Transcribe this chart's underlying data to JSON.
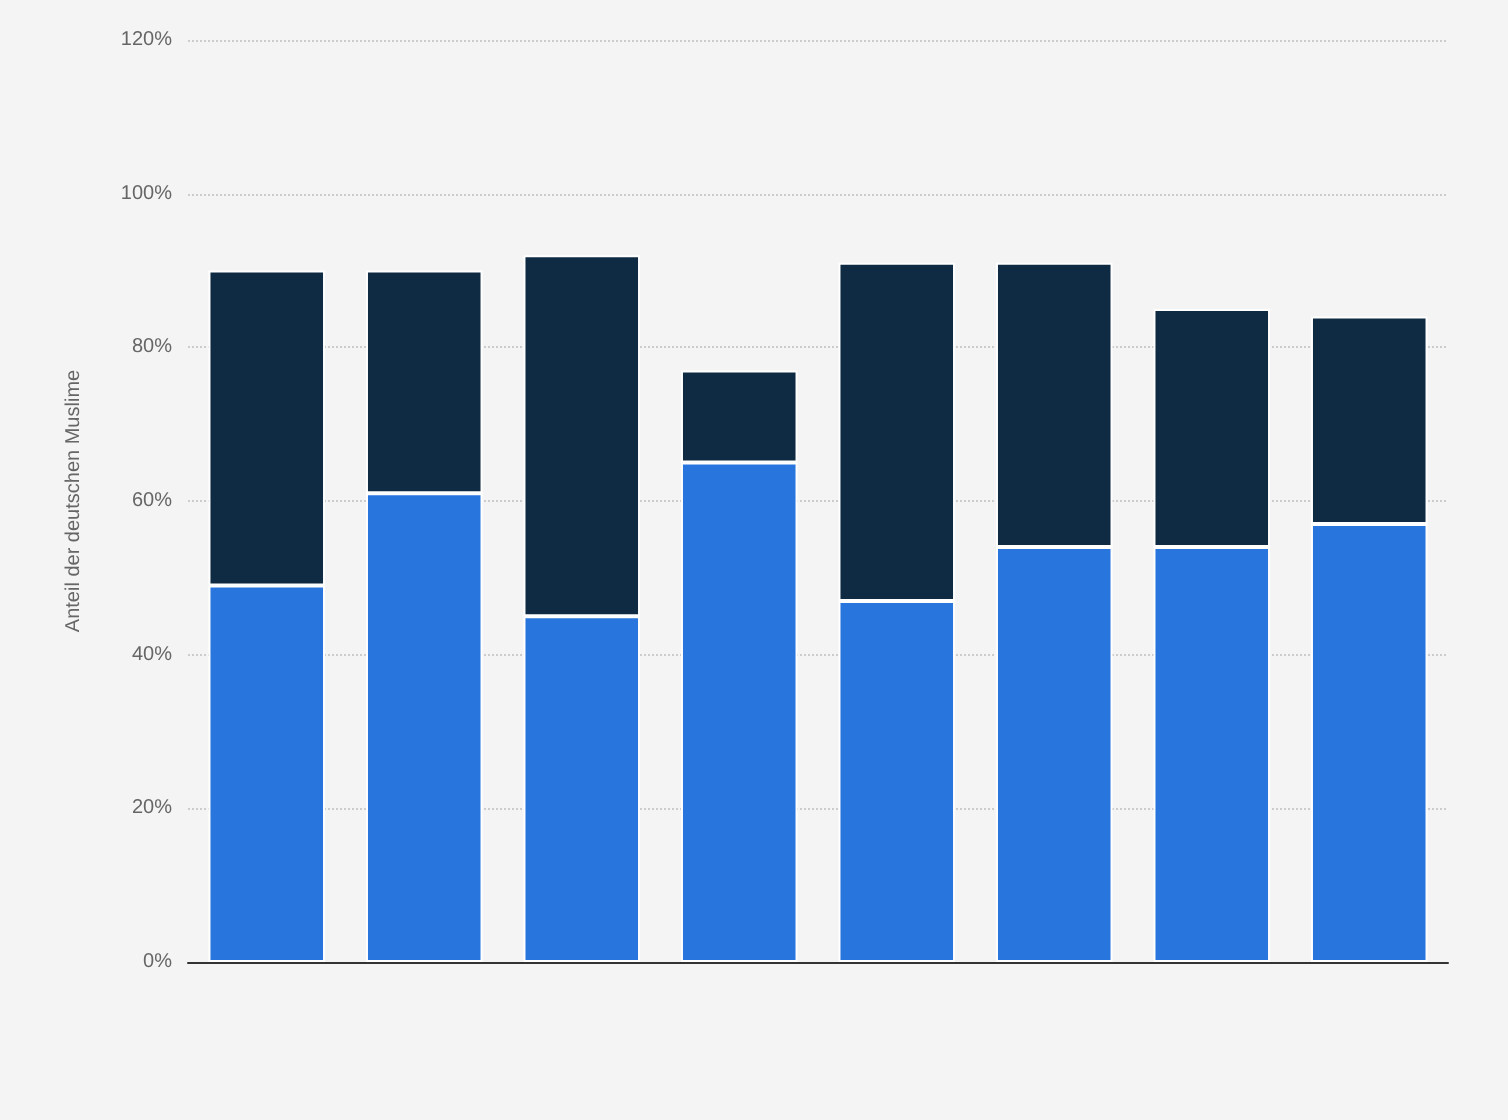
{
  "chart_data": {
    "type": "bar",
    "stacked": true,
    "ylabel": "Anteil der deutschen Muslime",
    "categories": [
      null,
      null,
      null,
      null,
      null,
      null,
      null,
      null
    ],
    "series": [
      {
        "color": "#2876dd",
        "values": [
          49,
          61,
          45,
          65,
          47,
          54,
          54,
          57
        ]
      },
      {
        "color": "#0f2a43",
        "values": [
          41,
          29,
          47,
          12,
          44,
          37,
          31,
          27
        ]
      }
    ],
    "ylim": [
      0,
      120
    ],
    "yticks": [
      {
        "value": 0,
        "label": "0%"
      },
      {
        "value": 20,
        "label": "20%"
      },
      {
        "value": 40,
        "label": "40%"
      },
      {
        "value": 60,
        "label": "60%"
      },
      {
        "value": 80,
        "label": "80%"
      },
      {
        "value": 100,
        "label": "100%"
      },
      {
        "value": 120,
        "label": "120%"
      }
    ],
    "grid": "y"
  }
}
